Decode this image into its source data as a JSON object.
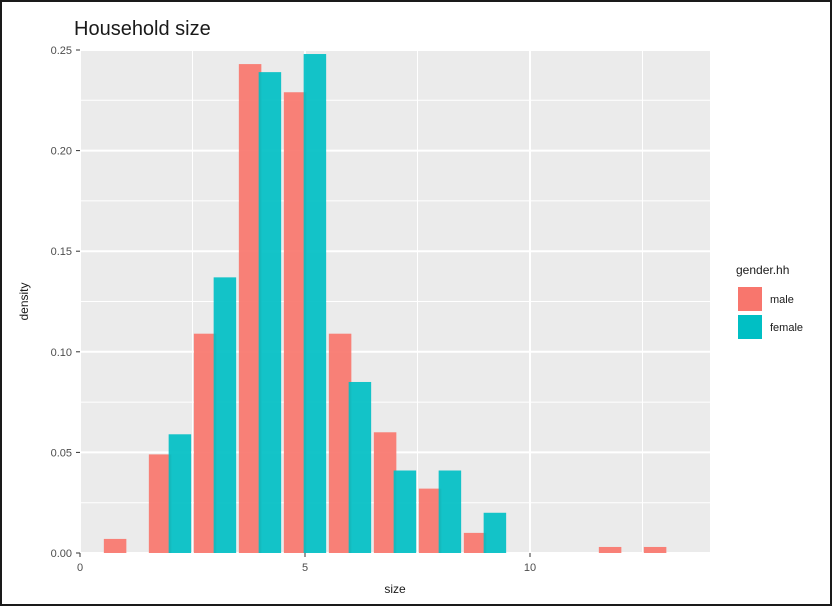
{
  "chart_data": {
    "type": "bar",
    "title": "Household size",
    "xlabel": "size",
    "ylabel": "density",
    "xlim": [
      0,
      14
    ],
    "ylim": [
      0,
      0.25
    ],
    "xticks": [
      0,
      5,
      10
    ],
    "yticks": [
      0,
      0.05,
      0.1,
      0.15,
      0.2,
      0.25
    ],
    "xtick_labels": [
      "0",
      "5",
      "10"
    ],
    "ytick_labels": [
      "0.00",
      "0.05",
      "0.10",
      "0.15",
      "0.20",
      "0.25"
    ],
    "grid": true,
    "background": "#EBEBEB",
    "legend": {
      "title": "gender.hh",
      "position": "right"
    },
    "x": [
      1,
      2,
      3,
      4,
      5,
      6,
      7,
      8,
      9,
      12,
      13
    ],
    "series": [
      {
        "name": "male",
        "color": "#F8766D",
        "values": [
          0.007,
          0.049,
          0.109,
          0.243,
          0.229,
          0.109,
          0.06,
          0.032,
          0.01,
          0.003,
          0.003
        ]
      },
      {
        "name": "female",
        "color": "#00BFC4",
        "values": [
          0.0,
          0.059,
          0.137,
          0.239,
          0.248,
          0.085,
          0.041,
          0.041,
          0.02,
          0.0,
          0.0
        ]
      }
    ]
  }
}
